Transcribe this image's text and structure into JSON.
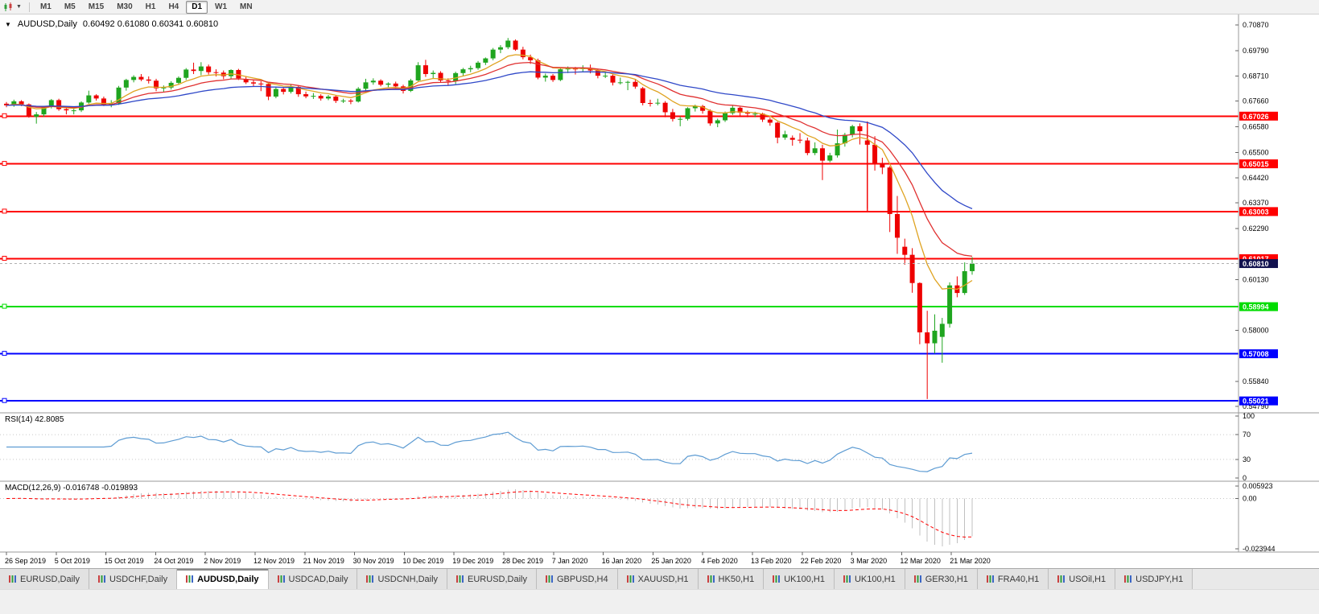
{
  "toolbar": {
    "timeframes": [
      {
        "label": "M1",
        "active": false
      },
      {
        "label": "M5",
        "active": false
      },
      {
        "label": "M15",
        "active": false
      },
      {
        "label": "M30",
        "active": false
      },
      {
        "label": "H1",
        "active": false
      },
      {
        "label": "H4",
        "active": false
      },
      {
        "label": "D1",
        "active": true
      },
      {
        "label": "W1",
        "active": false
      },
      {
        "label": "MN",
        "active": false
      }
    ]
  },
  "chart": {
    "symbol_label": "AUDUSD,Daily",
    "ohlc_label": "0.60492 0.61080 0.60341 0.60810"
  },
  "tabs": [
    {
      "label": "EURUSD,Daily",
      "active": false
    },
    {
      "label": "USDCHF,Daily",
      "active": false
    },
    {
      "label": "AUDUSD,Daily",
      "active": true
    },
    {
      "label": "USDCAD,Daily",
      "active": false
    },
    {
      "label": "USDCNH,Daily",
      "active": false
    },
    {
      "label": "EURUSD,Daily",
      "active": false
    },
    {
      "label": "GBPUSD,H4",
      "active": false
    },
    {
      "label": "XAUUSD,H1",
      "active": false
    },
    {
      "label": "HK50,H1",
      "active": false
    },
    {
      "label": "UK100,H1",
      "active": false
    },
    {
      "label": "UK100,H1",
      "active": false
    },
    {
      "label": "GER30,H1",
      "active": false
    },
    {
      "label": "FRA40,H1",
      "active": false
    },
    {
      "label": "USOil,H1",
      "active": false
    },
    {
      "label": "USDJPY,H1",
      "active": false
    }
  ],
  "chart_data": {
    "type": "candlestick",
    "symbol": "AUDUSD",
    "timeframe": "Daily",
    "price_range": {
      "top": 0.7087,
      "bottom": 0.5479
    },
    "colors": {
      "bull": "#1FA51F",
      "bear": "#EE0000"
    },
    "price_labels": [
      "0.70870",
      "0.69790",
      "0.68710",
      "0.67660",
      "0.66580",
      "0.65500",
      "0.64420",
      "0.63370",
      "0.62290",
      "0.60130",
      "0.58000",
      "0.55840",
      "0.54790"
    ],
    "date_labels": [
      "26 Sep 2019",
      "5 Oct 2019",
      "15 Oct 2019",
      "24 Oct 2019",
      "2 Nov 2019",
      "12 Nov 2019",
      "21 Nov 2019",
      "30 Nov 2019",
      "10 Dec 2019",
      "19 Dec 2019",
      "28 Dec 2019",
      "7 Jan 2020",
      "16 Jan 2020",
      "25 Jan 2020",
      "4 Feb 2020",
      "13 Feb 2020",
      "22 Feb 2020",
      "3 Mar 2020",
      "12 Mar 2020",
      "21 Mar 2020"
    ],
    "hlines": [
      {
        "price": 0.67026,
        "label": "0.67026",
        "color": "#FF0000"
      },
      {
        "price": 0.65015,
        "label": "0.65015",
        "color": "#FF0000"
      },
      {
        "price": 0.63003,
        "label": "0.63003",
        "color": "#FF0000"
      },
      {
        "price": 0.61017,
        "label": "0.61017",
        "color": "#FF0000"
      },
      {
        "price": 0.58994,
        "label": "0.58994",
        "color": "#00DC00"
      },
      {
        "price": 0.57008,
        "label": "0.57008",
        "color": "#0000FF"
      },
      {
        "price": 0.55021,
        "label": "0.55021",
        "color": "#0000FF"
      }
    ],
    "vline": {
      "index": 115,
      "from": 0.668,
      "to": 0.63,
      "color": "#FF0000"
    },
    "current_price": {
      "value": 0.6081,
      "label": "0.60810",
      "box_color": "#12124F"
    },
    "moving_averages": [
      {
        "period": 8,
        "color": "#DFA321"
      },
      {
        "period": 16,
        "color": "#E03030"
      },
      {
        "period": 34,
        "color": "#2F48C8"
      }
    ],
    "indicators": {
      "rsi": {
        "title": "RSI(14) 42.8085",
        "period": 14,
        "value": 42.8085,
        "levels": [
          100,
          70,
          30,
          0
        ],
        "color": "#5E9CD3"
      },
      "macd": {
        "title": "MACD(12,26,9) -0.016748 -0.019893",
        "fast": 12,
        "slow": 26,
        "signal": 9,
        "main_value": -0.016748,
        "signal_value": -0.019893,
        "scale_max": 0.005923,
        "scale_min": -0.023944,
        "axis_labels": [
          {
            "text": "0.005923",
            "value": 0.005923
          },
          {
            "text": "0.00",
            "value": 0
          },
          {
            "text": "-0.023944",
            "value": -0.023944
          }
        ],
        "histogram_color": "#C0C0C0",
        "signal_color": "#FF0000"
      }
    },
    "candles": [
      [
        0.6755,
        0.6762,
        0.674,
        0.6748
      ],
      [
        0.6748,
        0.6772,
        0.6742,
        0.6765
      ],
      [
        0.6765,
        0.677,
        0.6745,
        0.6752
      ],
      [
        0.6752,
        0.6756,
        0.6696,
        0.67
      ],
      [
        0.67,
        0.672,
        0.6671,
        0.671
      ],
      [
        0.671,
        0.6745,
        0.67,
        0.6741
      ],
      [
        0.6741,
        0.6775,
        0.6735,
        0.677
      ],
      [
        0.677,
        0.6776,
        0.6725,
        0.6732
      ],
      [
        0.6732,
        0.6745,
        0.671,
        0.6727
      ],
      [
        0.6727,
        0.6736,
        0.671,
        0.6727
      ],
      [
        0.6727,
        0.6765,
        0.672,
        0.676
      ],
      [
        0.676,
        0.681,
        0.6755,
        0.679
      ],
      [
        0.679,
        0.6795,
        0.6768,
        0.6777
      ],
      [
        0.6777,
        0.6785,
        0.6745,
        0.6753
      ],
      [
        0.6753,
        0.677,
        0.674,
        0.6756
      ],
      [
        0.6756,
        0.683,
        0.675,
        0.6823
      ],
      [
        0.6823,
        0.686,
        0.681,
        0.6855
      ],
      [
        0.6855,
        0.6875,
        0.6845,
        0.6868
      ],
      [
        0.6868,
        0.688,
        0.685,
        0.6857
      ],
      [
        0.6857,
        0.687,
        0.684,
        0.6852
      ],
      [
        0.6852,
        0.686,
        0.6808,
        0.682
      ],
      [
        0.682,
        0.6832,
        0.6805,
        0.6823
      ],
      [
        0.6823,
        0.685,
        0.6815,
        0.6843
      ],
      [
        0.6843,
        0.687,
        0.6835,
        0.6864
      ],
      [
        0.6864,
        0.6905,
        0.6855,
        0.6899
      ],
      [
        0.6899,
        0.6928,
        0.688,
        0.6893
      ],
      [
        0.6893,
        0.693,
        0.6875,
        0.6912
      ],
      [
        0.6912,
        0.692,
        0.6878,
        0.6888
      ],
      [
        0.6888,
        0.69,
        0.687,
        0.6886
      ],
      [
        0.6886,
        0.6895,
        0.6858,
        0.6871
      ],
      [
        0.6871,
        0.69,
        0.686,
        0.6897
      ],
      [
        0.6897,
        0.6902,
        0.6855,
        0.6862
      ],
      [
        0.6858,
        0.687,
        0.6838,
        0.6845
      ],
      [
        0.6845,
        0.6855,
        0.6828,
        0.684
      ],
      [
        0.684,
        0.685,
        0.6808,
        0.6838
      ],
      [
        0.6838,
        0.6842,
        0.677,
        0.6785
      ],
      [
        0.6785,
        0.6825,
        0.6778,
        0.6817
      ],
      [
        0.6817,
        0.6825,
        0.6794,
        0.6805
      ],
      [
        0.6805,
        0.6835,
        0.6798,
        0.6826
      ],
      [
        0.6826,
        0.683,
        0.6784,
        0.6795
      ],
      [
        0.6795,
        0.6806,
        0.6778,
        0.6786
      ],
      [
        0.6786,
        0.68,
        0.6775,
        0.6788
      ],
      [
        0.6788,
        0.6795,
        0.6768,
        0.6777
      ],
      [
        0.6777,
        0.6792,
        0.677,
        0.6785
      ],
      [
        0.6785,
        0.679,
        0.6758,
        0.6767
      ],
      [
        0.6767,
        0.6776,
        0.6758,
        0.6768
      ],
      [
        0.6768,
        0.6775,
        0.6753,
        0.6764
      ],
      [
        0.6764,
        0.6825,
        0.676,
        0.6818
      ],
      [
        0.6818,
        0.686,
        0.681,
        0.6845
      ],
      [
        0.6845,
        0.6862,
        0.6835,
        0.6852
      ],
      [
        0.6852,
        0.6858,
        0.6828,
        0.6835
      ],
      [
        0.6835,
        0.6845,
        0.6823,
        0.684
      ],
      [
        0.684,
        0.6848,
        0.6818,
        0.6828
      ],
      [
        0.6828,
        0.6835,
        0.6798,
        0.6809
      ],
      [
        0.6809,
        0.686,
        0.6804,
        0.6853
      ],
      [
        0.6853,
        0.693,
        0.685,
        0.6917
      ],
      [
        0.6917,
        0.694,
        0.6868,
        0.688
      ],
      [
        0.688,
        0.6895,
        0.6862,
        0.6885
      ],
      [
        0.6885,
        0.6892,
        0.6843,
        0.6853
      ],
      [
        0.6853,
        0.6862,
        0.6833,
        0.6851
      ],
      [
        0.6851,
        0.689,
        0.6838,
        0.6884
      ],
      [
        0.6884,
        0.6906,
        0.6873,
        0.69
      ],
      [
        0.69,
        0.6915,
        0.6888,
        0.6905
      ],
      [
        0.6905,
        0.6935,
        0.6898,
        0.6928
      ],
      [
        0.6928,
        0.695,
        0.6918,
        0.6946
      ],
      [
        0.6946,
        0.699,
        0.6938,
        0.6983
      ],
      [
        0.6983,
        0.7002,
        0.6968,
        0.6993
      ],
      [
        0.6993,
        0.7032,
        0.6985,
        0.7021
      ],
      [
        0.7021,
        0.7026,
        0.6978,
        0.6983
      ],
      [
        0.6983,
        0.6995,
        0.6942,
        0.6951
      ],
      [
        0.6951,
        0.6962,
        0.6923,
        0.6938
      ],
      [
        0.6938,
        0.6945,
        0.6858,
        0.6865
      ],
      [
        0.6865,
        0.6882,
        0.6848,
        0.6873
      ],
      [
        0.6873,
        0.688,
        0.6847,
        0.6855
      ],
      [
        0.6855,
        0.6905,
        0.685,
        0.69
      ],
      [
        0.69,
        0.6912,
        0.6884,
        0.6903
      ],
      [
        0.6903,
        0.691,
        0.6878,
        0.6901
      ],
      [
        0.6901,
        0.6917,
        0.6888,
        0.6905
      ],
      [
        0.6905,
        0.692,
        0.6883,
        0.6895
      ],
      [
        0.6895,
        0.69,
        0.6862,
        0.6873
      ],
      [
        0.6873,
        0.6886,
        0.6863,
        0.6873
      ],
      [
        0.6873,
        0.6878,
        0.6832,
        0.6844
      ],
      [
        0.6844,
        0.6865,
        0.6836,
        0.6845
      ],
      [
        0.6845,
        0.6852,
        0.6812,
        0.6847
      ],
      [
        0.6847,
        0.6856,
        0.6818,
        0.6827
      ],
      [
        0.682,
        0.6826,
        0.6748,
        0.6758
      ],
      [
        0.6758,
        0.6772,
        0.6743,
        0.6757
      ],
      [
        0.6757,
        0.6776,
        0.6748,
        0.6759
      ],
      [
        0.6759,
        0.6766,
        0.6698,
        0.6719
      ],
      [
        0.6719,
        0.6733,
        0.668,
        0.6691
      ],
      [
        0.6691,
        0.6702,
        0.666,
        0.6691
      ],
      [
        0.6691,
        0.674,
        0.6684,
        0.6736
      ],
      [
        0.6736,
        0.6751,
        0.6722,
        0.6745
      ],
      [
        0.6745,
        0.675,
        0.6713,
        0.6725
      ],
      [
        0.6725,
        0.6731,
        0.6662,
        0.6672
      ],
      [
        0.6672,
        0.6692,
        0.6656,
        0.6685
      ],
      [
        0.6685,
        0.6722,
        0.6678,
        0.6715
      ],
      [
        0.6715,
        0.6746,
        0.6708,
        0.6738
      ],
      [
        0.6738,
        0.6742,
        0.6703,
        0.6717
      ],
      [
        0.6717,
        0.6726,
        0.6698,
        0.6713
      ],
      [
        0.6713,
        0.6721,
        0.6698,
        0.6713
      ],
      [
        0.6713,
        0.6717,
        0.6678,
        0.6688
      ],
      [
        0.6688,
        0.6696,
        0.6662,
        0.6675
      ],
      [
        0.6675,
        0.6679,
        0.6588,
        0.6612
      ],
      [
        0.6612,
        0.6641,
        0.6603,
        0.6626
      ],
      [
        0.6611,
        0.6621,
        0.6578,
        0.6603
      ],
      [
        0.6603,
        0.6631,
        0.6588,
        0.66
      ],
      [
        0.66,
        0.6612,
        0.6538,
        0.6547
      ],
      [
        0.6547,
        0.6592,
        0.6538,
        0.6567
      ],
      [
        0.6567,
        0.6582,
        0.6433,
        0.6515
      ],
      [
        0.6515,
        0.6548,
        0.6508,
        0.6537
      ],
      [
        0.6537,
        0.6646,
        0.6528,
        0.6588
      ],
      [
        0.6588,
        0.6632,
        0.6574,
        0.6624
      ],
      [
        0.6624,
        0.6666,
        0.6613,
        0.666
      ],
      [
        0.666,
        0.6672,
        0.6583,
        0.6639
      ],
      [
        0.66,
        0.6642,
        0.6313,
        0.6582
      ],
      [
        0.6582,
        0.6618,
        0.6473,
        0.6503
      ],
      [
        0.6503,
        0.6527,
        0.6458,
        0.6486
      ],
      [
        0.6486,
        0.6492,
        0.6214,
        0.629
      ],
      [
        0.629,
        0.6366,
        0.6122,
        0.619
      ],
      [
        0.6152,
        0.6186,
        0.6076,
        0.6118
      ],
      [
        0.6118,
        0.6146,
        0.5958,
        0.5999
      ],
      [
        0.5999,
        0.6002,
        0.5741,
        0.5791
      ],
      [
        0.5791,
        0.5882,
        0.551,
        0.5745
      ],
      [
        0.5745,
        0.5867,
        0.5702,
        0.5798
      ],
      [
        0.5772,
        0.5852,
        0.5663,
        0.5827
      ],
      [
        0.5827,
        0.6002,
        0.5811,
        0.5989
      ],
      [
        0.5989,
        0.6027,
        0.5939,
        0.5957
      ],
      [
        0.5957,
        0.6086,
        0.5949,
        0.6049
      ],
      [
        0.60492,
        0.6108,
        0.60341,
        0.6081
      ]
    ]
  }
}
